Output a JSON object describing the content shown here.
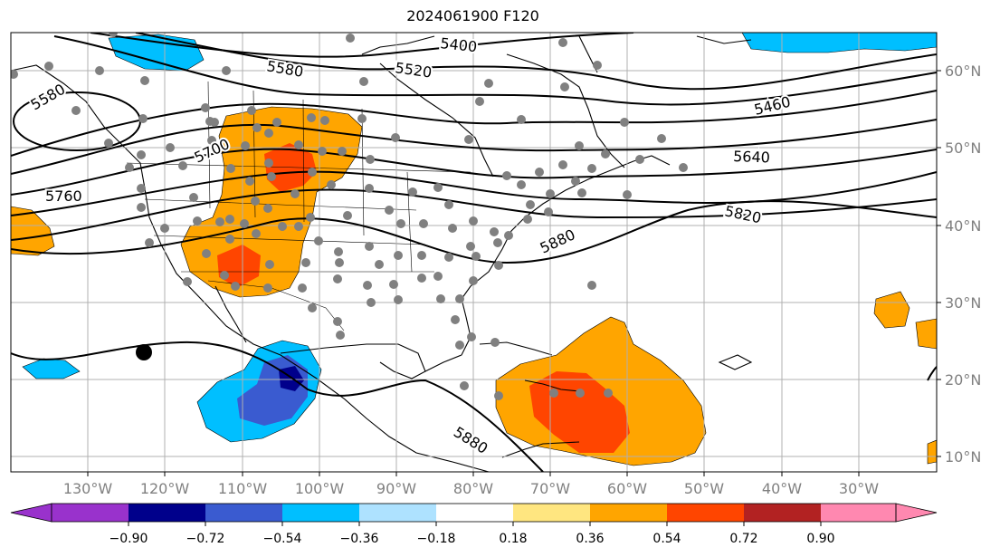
{
  "title": "2024061900 F120",
  "lon_labels": [
    "130°W",
    "120°W",
    "110°W",
    "100°W",
    "90°W",
    "80°W",
    "70°W",
    "60°W",
    "50°W",
    "40°W",
    "30°W"
  ],
  "lat_labels": [
    "10°N",
    "20°N",
    "30°N",
    "40°N",
    "50°N",
    "60°N"
  ],
  "contour_labels": [
    "5400",
    "5580",
    "5520",
    "5460",
    "5640",
    "5700",
    "5760",
    "5820",
    "5880",
    "5880",
    "5580"
  ],
  "colorbar": {
    "ticks": [
      "−0.90",
      "−0.72",
      "−0.54",
      "−0.36",
      "−0.18",
      "0.18",
      "0.36",
      "0.54",
      "0.72",
      "0.90"
    ],
    "colors": [
      "#9932cc",
      "#00008b",
      "#3a5bd0",
      "#00bfff",
      "#aee2ff",
      "#ffffff",
      "#ffe680",
      "#ffa500",
      "#ff4500",
      "#b22222",
      "#ff88b0"
    ]
  },
  "colors": {
    "orange": "#ffa500",
    "red_orange": "#ff4500",
    "light_blue": "#00bfff",
    "mid_blue": "#3a5bd0",
    "navy": "#00008b",
    "station_dot": "#808080",
    "grid": "#b0b0b0"
  }
}
